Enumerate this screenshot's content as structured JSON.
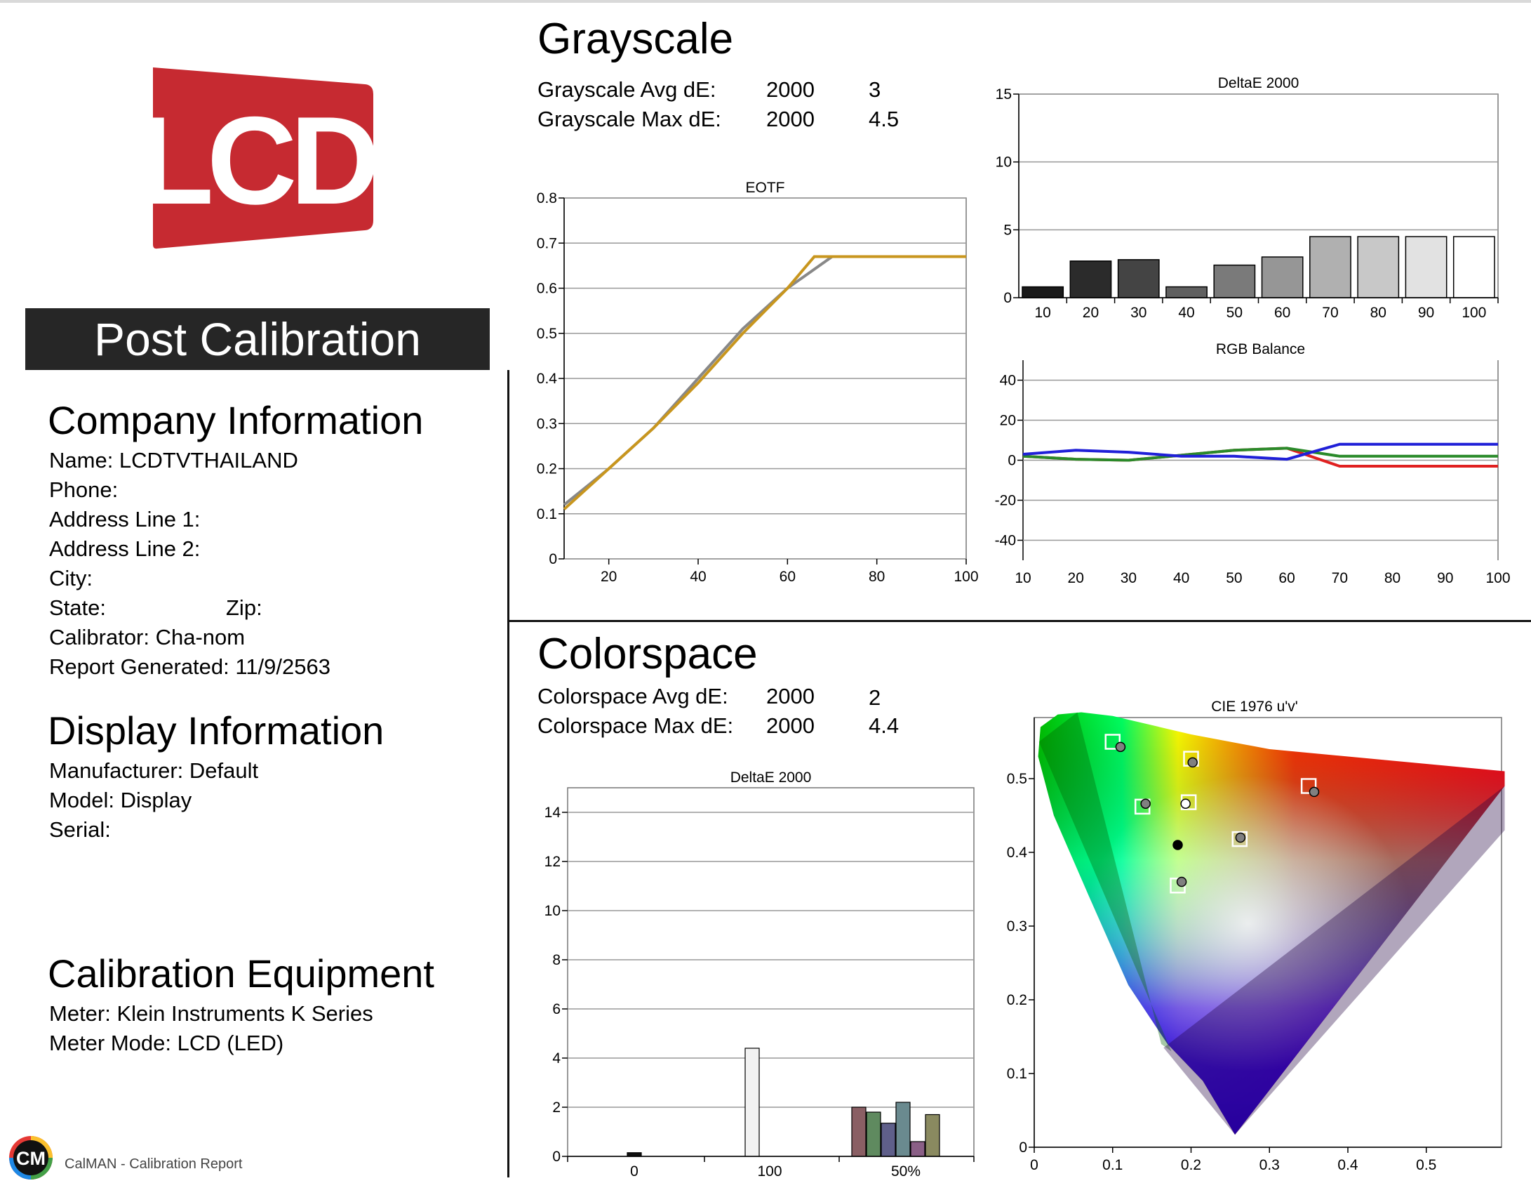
{
  "banner": "Post Calibration",
  "logo_text": "LCD",
  "colors": {
    "logo_red": "#c62a31",
    "banner_bg": "#262626",
    "grid": "#999999"
  },
  "company": {
    "heading": "Company Information",
    "name": "Name: LCDTVTHAILAND",
    "phone": "Phone:",
    "address1": "Address Line 1:",
    "address2": "Address Line 2:",
    "city": "City:",
    "state": "State:",
    "zip": "Zip:",
    "calibrator": "Calibrator: Cha-nom",
    "report_generated": "Report Generated: 11/9/2563"
  },
  "display": {
    "heading": "Display Information",
    "manufacturer": "Manufacturer: Default",
    "model": "Model: Display",
    "serial": "Serial:"
  },
  "equipment": {
    "heading": "Calibration Equipment",
    "meter": "Meter: Klein Instruments K Series",
    "meter_mode": "Meter Mode: LCD (LED)"
  },
  "footer": {
    "icon_text": "CM",
    "text": "CalMAN - Calibration Report"
  },
  "grayscale": {
    "heading": "Grayscale",
    "avg_label": "Grayscale Avg dE:",
    "avg_std": "2000",
    "avg_value": "3",
    "max_label": "Grayscale Max dE:",
    "max_std": "2000",
    "max_value": "4.5"
  },
  "colorspace": {
    "heading": "Colorspace",
    "avg_label": "Colorspace Avg dE:",
    "avg_std": "2000",
    "avg_value": "2",
    "max_label": "Colorspace Max dE:",
    "max_std": "2000",
    "max_value": "4.4"
  },
  "chart_data": [
    {
      "id": "eotf",
      "type": "line",
      "title": "EOTF",
      "xlim": [
        10,
        100
      ],
      "ylim": [
        0,
        0.8
      ],
      "xticks": [
        "20",
        "40",
        "60",
        "80",
        "100"
      ],
      "yticks": [
        "0",
        "0.1",
        "0.2",
        "0.3",
        "0.4",
        "0.5",
        "0.6",
        "0.7",
        "0.8"
      ],
      "series": [
        {
          "color": "#888888",
          "x": [
            10,
            20,
            30,
            40,
            50,
            60,
            70,
            80,
            90,
            100
          ],
          "y": [
            0.12,
            0.2,
            0.29,
            0.4,
            0.51,
            0.6,
            0.67,
            0.67,
            0.67,
            0.67
          ]
        },
        {
          "color": "#c8961e",
          "x": [
            10,
            20,
            30,
            40,
            50,
            60,
            66,
            70,
            80,
            90,
            100
          ],
          "y": [
            0.11,
            0.2,
            0.29,
            0.39,
            0.5,
            0.6,
            0.67,
            0.67,
            0.67,
            0.67,
            0.67
          ]
        }
      ]
    },
    {
      "id": "gray_de",
      "type": "bar",
      "title": "DeltaE 2000",
      "ylim": [
        0,
        15
      ],
      "yticks": [
        "0",
        "5",
        "10",
        "15"
      ],
      "categories": [
        "10",
        "20",
        "30",
        "40",
        "50",
        "60",
        "70",
        "80",
        "90",
        "100"
      ],
      "values": [
        0.8,
        2.7,
        2.8,
        0.8,
        2.4,
        3.0,
        4.5,
        4.5,
        4.5,
        4.5
      ],
      "bar_colors": [
        "#1a1a1a",
        "#2b2b2b",
        "#444444",
        "#606060",
        "#7a7a7a",
        "#969696",
        "#b0b0b0",
        "#c8c8c8",
        "#e2e2e2",
        "#ffffff"
      ]
    },
    {
      "id": "rgb_balance",
      "type": "line",
      "title": "RGB Balance",
      "xlim": [
        10,
        100
      ],
      "ylim": [
        -50,
        50
      ],
      "xticks": [
        "10",
        "20",
        "30",
        "40",
        "50",
        "60",
        "70",
        "80",
        "90",
        "100"
      ],
      "yticks": [
        "-40",
        "-20",
        "0",
        "20",
        "40"
      ],
      "series": [
        {
          "color": "#e02020",
          "x": [
            10,
            20,
            30,
            40,
            50,
            60,
            70,
            80,
            90,
            100
          ],
          "y": [
            2,
            0.5,
            0,
            2.5,
            5,
            6,
            -3,
            -3,
            -3,
            -3
          ]
        },
        {
          "color": "#2a8a2a",
          "x": [
            10,
            20,
            30,
            40,
            50,
            60,
            70,
            80,
            90,
            100
          ],
          "y": [
            2,
            0.5,
            0,
            2.5,
            5,
            6,
            2,
            2,
            2,
            2
          ]
        },
        {
          "color": "#2020d8",
          "x": [
            10,
            20,
            30,
            40,
            50,
            60,
            70,
            80,
            90,
            100
          ],
          "y": [
            3,
            5,
            4,
            2,
            2,
            0.5,
            8,
            8,
            8,
            8
          ]
        }
      ]
    },
    {
      "id": "colorspace_de",
      "type": "bar",
      "title": "DeltaE 2000",
      "ylim": [
        0,
        15
      ],
      "yticks": [
        "0",
        "2",
        "4",
        "6",
        "8",
        "10",
        "12",
        "14"
      ],
      "xticks": [
        "0",
        "100",
        "50%"
      ],
      "bars": [
        {
          "x": 0,
          "value": 0.0,
          "color": "#000000"
        },
        {
          "x": 1,
          "value": 0.15,
          "color": "#111111"
        },
        {
          "x": 2,
          "value": 0.0,
          "color": "#888888"
        },
        {
          "x": 3,
          "value": 0.0,
          "color": "#bbbbbb"
        },
        {
          "x": 4,
          "value": 4.4,
          "color": "#f2f2f2"
        },
        {
          "x": 5,
          "value": 2.0,
          "color": "#8a5f64"
        },
        {
          "x": 6,
          "value": 1.8,
          "color": "#5f8a5f"
        },
        {
          "x": 7,
          "value": 1.35,
          "color": "#5f5f8a"
        },
        {
          "x": 8,
          "value": 2.2,
          "color": "#6a8a8f"
        },
        {
          "x": 9,
          "value": 0.6,
          "color": "#8a5f86"
        },
        {
          "x": 10,
          "value": 1.7,
          "color": "#8a8a60"
        }
      ]
    },
    {
      "id": "cie",
      "type": "scatter",
      "title": "CIE 1976 u'v'",
      "xlim": [
        0,
        0.6
      ],
      "ylim": [
        0,
        0.6
      ],
      "xticks": [
        "0",
        "0.1",
        "0.2",
        "0.3",
        "0.4",
        "0.5"
      ],
      "yticks": [
        "0",
        "0.1",
        "0.2",
        "0.3",
        "0.4",
        "0.5"
      ],
      "targets": [
        {
          "u": 0.1,
          "v": 0.55
        },
        {
          "u": 0.2,
          "v": 0.527
        },
        {
          "u": 0.35,
          "v": 0.49
        },
        {
          "u": 0.138,
          "v": 0.462
        },
        {
          "u": 0.197,
          "v": 0.468
        },
        {
          "u": 0.262,
          "v": 0.418
        },
        {
          "u": 0.183,
          "v": 0.355
        }
      ],
      "measured": [
        {
          "u": 0.11,
          "v": 0.543,
          "fill": "#808080"
        },
        {
          "u": 0.202,
          "v": 0.522,
          "fill": "#808080"
        },
        {
          "u": 0.357,
          "v": 0.482,
          "fill": "#808080"
        },
        {
          "u": 0.142,
          "v": 0.466,
          "fill": "#808080"
        },
        {
          "u": 0.193,
          "v": 0.466,
          "fill": "#ffffff"
        },
        {
          "u": 0.263,
          "v": 0.42,
          "fill": "#808080"
        },
        {
          "u": 0.188,
          "v": 0.36,
          "fill": "#808080"
        },
        {
          "u": 0.183,
          "v": 0.41,
          "fill": "#000000"
        }
      ]
    }
  ]
}
